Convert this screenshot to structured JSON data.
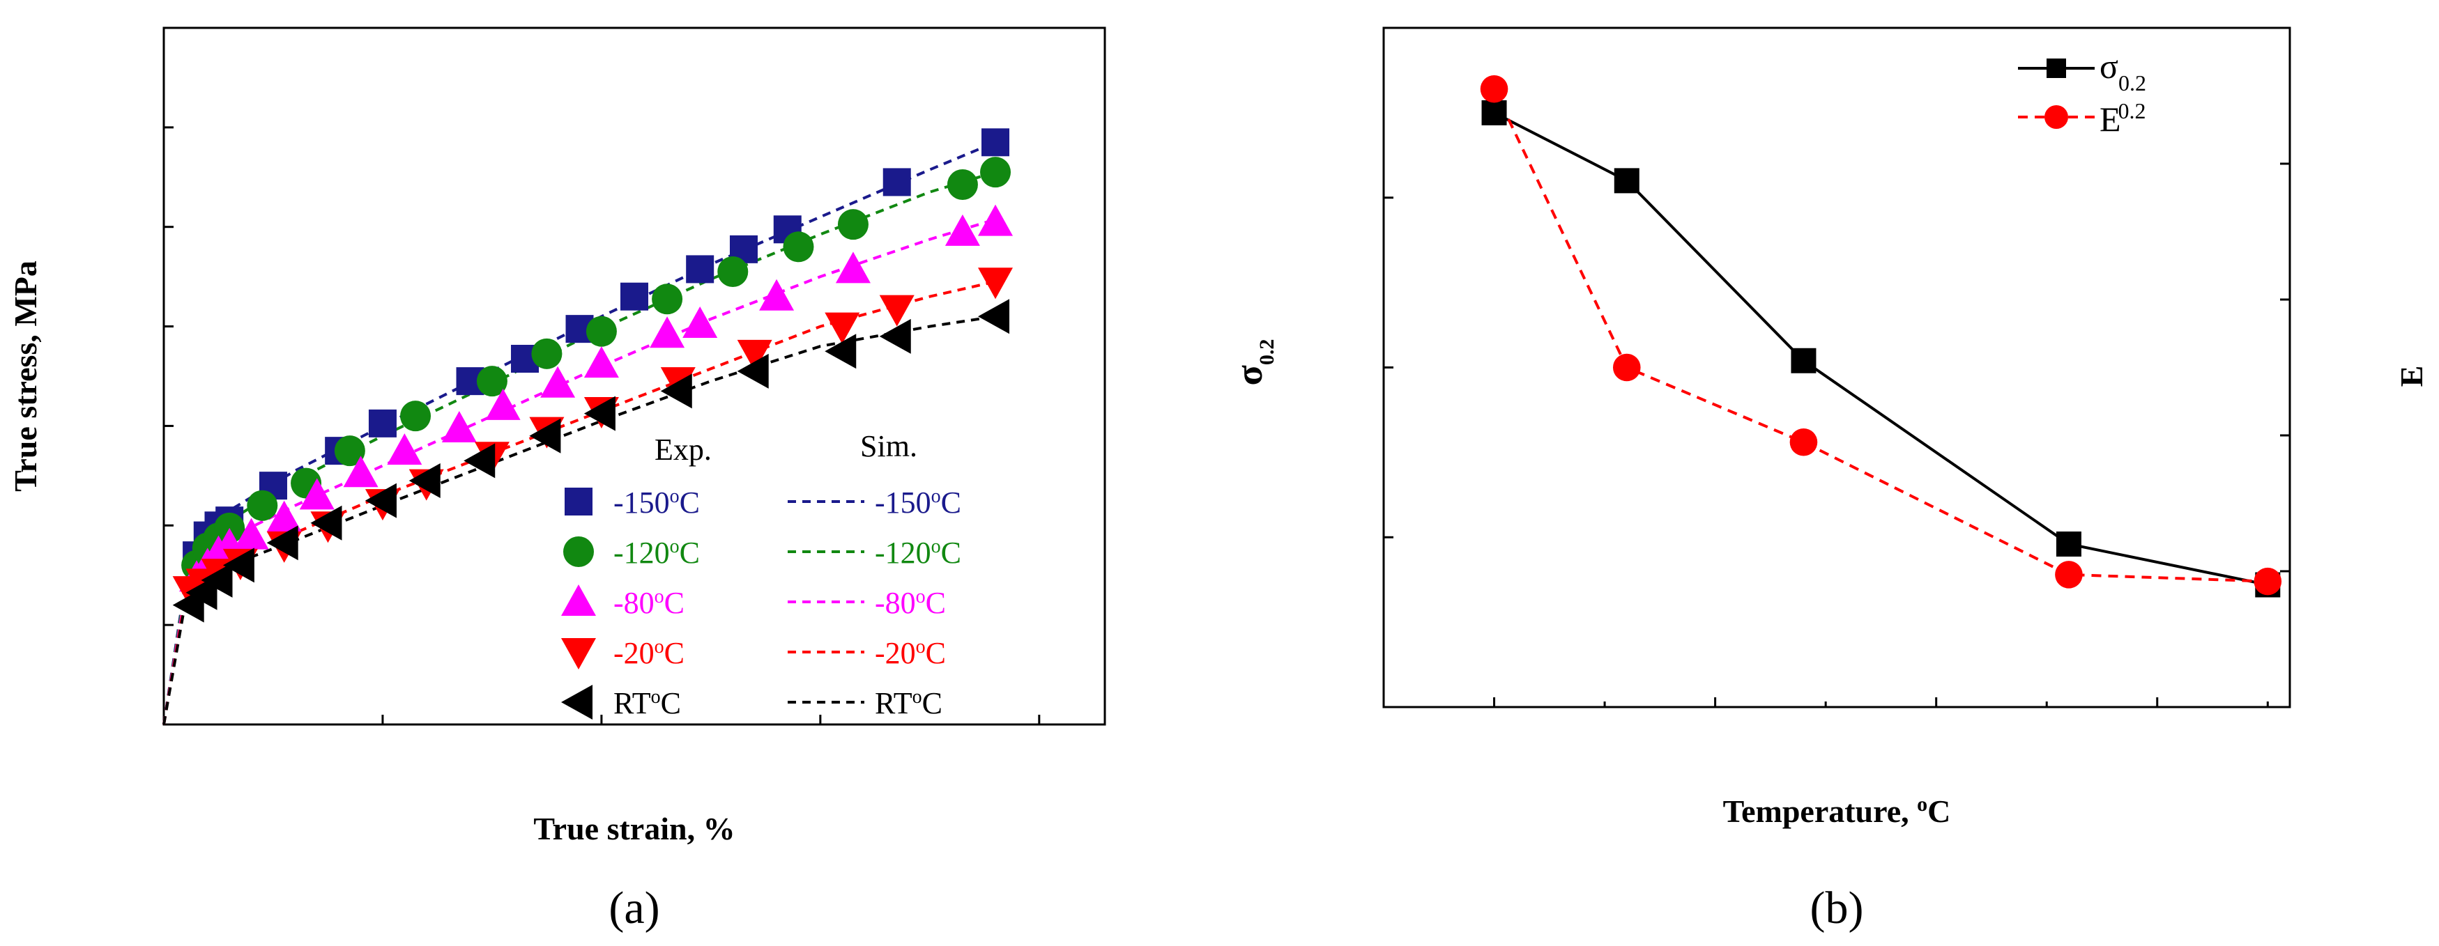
{
  "charts": {
    "a": {
      "type": "line",
      "xlabel": "True strain, %",
      "ylabel": "True stress, MPa",
      "caption_pre": "(",
      "caption_letter": "a",
      "caption_post": ")",
      "xlim": [
        0.0,
        0.43
      ],
      "ylim": [
        0,
        1400
      ],
      "xticks": [
        "0.0",
        "0.1",
        "0.2",
        "0.3",
        "0.4"
      ],
      "yticks": [
        "0",
        "200",
        "400",
        "600",
        "800",
        "1000",
        "1200",
        "1400"
      ],
      "legend": {
        "exp_header": "Exp.",
        "sim_header": "Sim."
      },
      "series": [
        {
          "name": "-150",
          "unit": "C",
          "color": "#1a1a8c",
          "marker": "square",
          "exp_x": [
            0.015,
            0.02,
            0.025,
            0.03,
            0.05,
            0.08,
            0.1,
            0.14,
            0.165,
            0.19,
            0.215,
            0.245,
            0.265,
            0.285,
            0.335,
            0.38
          ],
          "exp_y": [
            340,
            380,
            400,
            410,
            480,
            550,
            605,
            690,
            735,
            795,
            860,
            915,
            955,
            995,
            1090,
            1170
          ],
          "sim_x": [
            0.0,
            0.01,
            0.02,
            0.03,
            0.06,
            0.1,
            0.15,
            0.2,
            0.25,
            0.3,
            0.35,
            0.38
          ],
          "sim_y": [
            0,
            290,
            390,
            430,
            510,
            600,
            710,
            820,
            925,
            1020,
            1115,
            1170
          ]
        },
        {
          "name": "-120",
          "unit": "C",
          "color": "#118811",
          "marker": "circle",
          "exp_x": [
            0.015,
            0.02,
            0.025,
            0.03,
            0.045,
            0.065,
            0.085,
            0.115,
            0.15,
            0.175,
            0.2,
            0.23,
            0.26,
            0.29,
            0.315,
            0.365,
            0.38
          ],
          "exp_y": [
            320,
            355,
            375,
            395,
            440,
            485,
            550,
            620,
            690,
            745,
            790,
            855,
            910,
            960,
            1005,
            1085,
            1110
          ],
          "sim_x": [
            0.0,
            0.01,
            0.02,
            0.03,
            0.06,
            0.1,
            0.15,
            0.2,
            0.25,
            0.3,
            0.35,
            0.38
          ],
          "sim_y": [
            0,
            280,
            365,
            410,
            490,
            580,
            685,
            795,
            895,
            985,
            1070,
            1110
          ]
        },
        {
          "name": "-80",
          "unit": "C",
          "color": "#ff00ff",
          "marker": "triangle-up",
          "exp_x": [
            0.015,
            0.02,
            0.025,
            0.03,
            0.04,
            0.055,
            0.07,
            0.09,
            0.11,
            0.135,
            0.155,
            0.18,
            0.2,
            0.23,
            0.245,
            0.28,
            0.315,
            0.365,
            0.38
          ],
          "exp_y": [
            295,
            320,
            345,
            360,
            380,
            415,
            460,
            505,
            550,
            595,
            640,
            685,
            725,
            785,
            805,
            860,
            915,
            990,
            1010
          ],
          "sim_x": [
            0.0,
            0.01,
            0.02,
            0.03,
            0.06,
            0.1,
            0.15,
            0.2,
            0.25,
            0.3,
            0.35,
            0.38
          ],
          "sim_y": [
            0,
            270,
            340,
            375,
            440,
            520,
            620,
            720,
            815,
            900,
            975,
            1015
          ]
        },
        {
          "name": "-20",
          "unit": "C",
          "color": "#ff0000",
          "marker": "triangle-down",
          "exp_x": [
            0.012,
            0.018,
            0.025,
            0.035,
            0.055,
            0.075,
            0.1,
            0.12,
            0.15,
            0.175,
            0.2,
            0.235,
            0.27,
            0.31,
            0.335,
            0.38
          ],
          "exp_y": [
            270,
            285,
            305,
            325,
            360,
            400,
            445,
            485,
            540,
            590,
            630,
            690,
            745,
            800,
            835,
            890
          ],
          "sim_x": [
            0.0,
            0.01,
            0.02,
            0.03,
            0.06,
            0.1,
            0.15,
            0.2,
            0.25,
            0.3,
            0.35,
            0.38
          ],
          "sim_y": [
            0,
            260,
            310,
            335,
            385,
            460,
            545,
            630,
            715,
            800,
            860,
            890
          ]
        },
        {
          "name": "RT",
          "unit": "C",
          "color": "#000000",
          "marker": "triangle-left",
          "exp_x": [
            0.012,
            0.018,
            0.025,
            0.035,
            0.055,
            0.075,
            0.1,
            0.12,
            0.145,
            0.175,
            0.2,
            0.235,
            0.27,
            0.31,
            0.335,
            0.38
          ],
          "exp_y": [
            240,
            265,
            290,
            320,
            365,
            405,
            450,
            490,
            530,
            580,
            625,
            670,
            710,
            750,
            780,
            820
          ],
          "sim_x": [
            0.0,
            0.01,
            0.02,
            0.03,
            0.06,
            0.1,
            0.15,
            0.2,
            0.25,
            0.3,
            0.35,
            0.38
          ],
          "sim_y": [
            0,
            250,
            295,
            320,
            370,
            440,
            525,
            610,
            690,
            760,
            800,
            820
          ]
        }
      ]
    },
    "b": {
      "type": "line",
      "xlabel": "Temperature, ",
      "xlabel_sup": "o",
      "xlabel_unit": "C",
      "ylabel_left_main": "σ",
      "ylabel_left_sub": "0.2",
      "ylabel_right": "E",
      "caption_pre": "(",
      "caption_letter": "b",
      "caption_post": ")",
      "xlim": [
        -175,
        30
      ],
      "ylim_left": [
        250,
        450
      ],
      "ylim_right": [
        12000,
        22000
      ],
      "xticks": [
        "-150",
        "-100",
        "-50",
        "0"
      ],
      "xtick_values": [
        -150,
        -100,
        -50,
        0
      ],
      "yticks_left": [
        "250",
        "300",
        "350",
        "400",
        "450"
      ],
      "yticks_right": [
        "12,000",
        "14,000",
        "16,000",
        "18,000",
        "20,000",
        "22,000"
      ],
      "series": [
        {
          "legend_main": "σ",
          "legend_sub": "0.2",
          "color": "#000000",
          "marker": "square",
          "dash": "solid",
          "axis": "left",
          "x": [
            -150,
            -120,
            -80,
            -20,
            25
          ],
          "y": [
            425,
            405,
            352,
            298,
            286
          ]
        },
        {
          "legend_main": "E",
          "legend_sub": "0.2",
          "color": "#ff0000",
          "marker": "circle",
          "dash": "dashed",
          "axis": "right",
          "x": [
            -150,
            -120,
            -80,
            -20,
            25
          ],
          "y": [
            21100,
            17000,
            15900,
            13950,
            13850
          ]
        }
      ]
    }
  }
}
